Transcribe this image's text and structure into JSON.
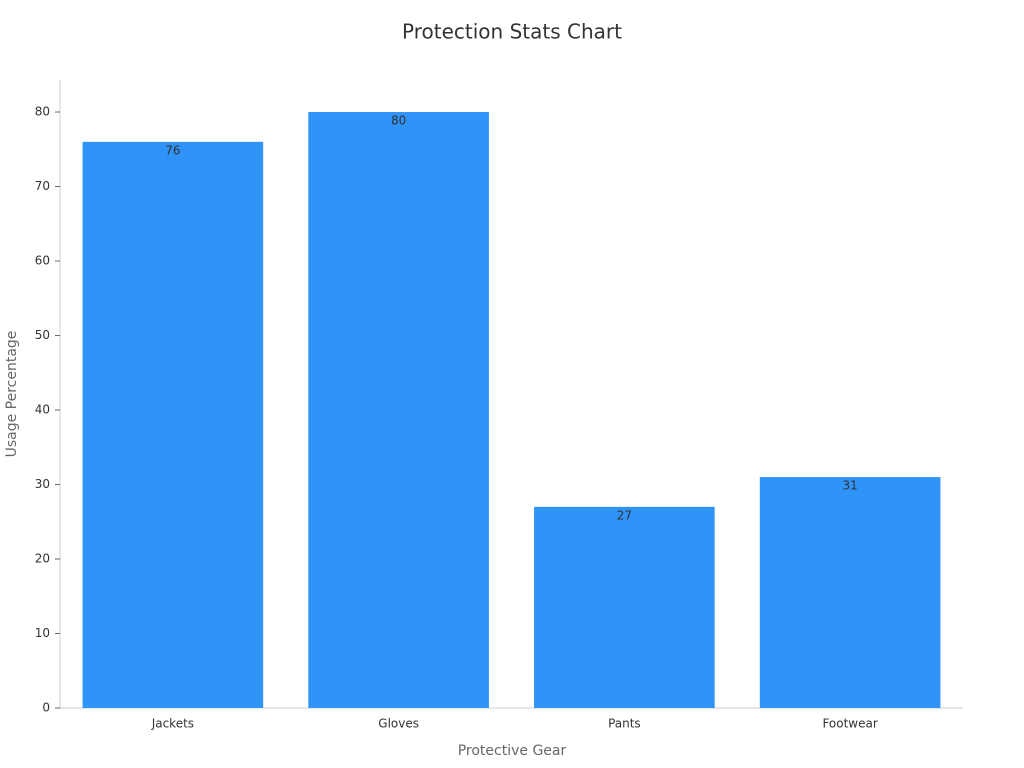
{
  "chart_data": {
    "type": "bar",
    "title": "Protection Stats Chart",
    "x_label": "Protective Gear",
    "y_label": "Usage Percentage",
    "categories": [
      "Jackets",
      "Gloves",
      "Pants",
      "Footwear"
    ],
    "values": [
      76,
      80,
      27,
      31
    ],
    "color": "#2f93f8",
    "ylim": [
      0,
      84.3
    ],
    "yticks": [
      0,
      10,
      20,
      30,
      40,
      50,
      60,
      70,
      80
    ],
    "grid": false
  }
}
